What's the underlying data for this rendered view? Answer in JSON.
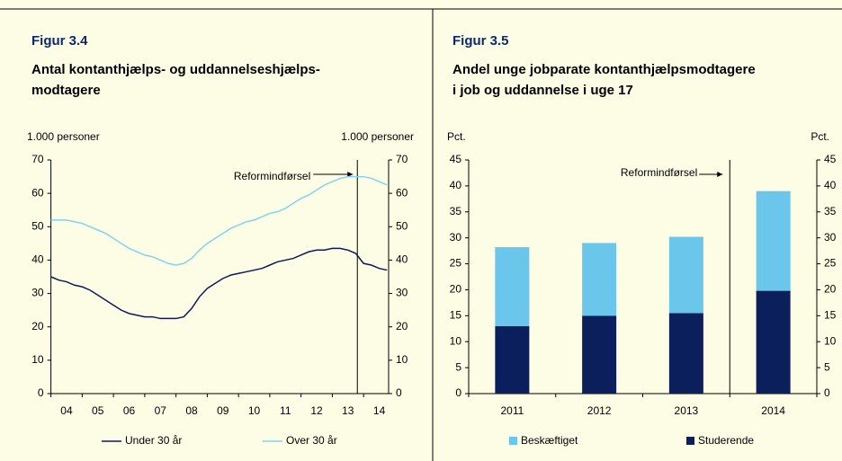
{
  "chart_data": [
    {
      "type": "line",
      "title": "Figur 3.4",
      "subtitle": [
        "Antal kontanthjælps- og uddannelseshjælps-",
        "modtagere"
      ],
      "ylabel": "1.000 personer",
      "y2label": "1.000 personer",
      "x": [
        4,
        4.25,
        4.5,
        4.75,
        5,
        5.25,
        5.5,
        5.75,
        6,
        6.25,
        6.5,
        6.75,
        7,
        7.25,
        7.5,
        7.75,
        8,
        8.25,
        8.5,
        8.75,
        9,
        9.25,
        9.5,
        9.75,
        10,
        10.25,
        10.5,
        10.75,
        11,
        11.25,
        11.5,
        11.75,
        12,
        12.25,
        12.5,
        12.75,
        13,
        13.25,
        13.5,
        13.75,
        14,
        14.25,
        14.5,
        14.75
      ],
      "series": [
        {
          "name": "Under 30 år",
          "color": "#0d1a5a",
          "values": [
            35,
            34,
            33.5,
            32.5,
            32,
            31,
            29.5,
            28,
            26.5,
            25,
            24,
            23.5,
            23,
            23,
            22.5,
            22.5,
            22.5,
            23,
            25.5,
            29,
            31.5,
            33,
            34.5,
            35.5,
            36,
            36.5,
            37,
            37.5,
            38.5,
            39.5,
            40,
            40.5,
            41.5,
            42.5,
            43,
            43,
            43.5,
            43.5,
            43,
            42,
            39,
            38.5,
            37.5,
            37
          ]
        },
        {
          "name": "Over 30 år",
          "color": "#7fd4f0",
          "values": [
            52,
            52,
            52,
            51.5,
            51,
            50,
            49,
            48,
            46.5,
            45,
            43.5,
            42.5,
            41.5,
            41,
            40,
            39,
            38.5,
            39,
            40.5,
            43,
            45,
            46.5,
            48,
            49.5,
            50.5,
            51.5,
            52,
            53,
            54,
            54.5,
            55.5,
            57,
            58.5,
            59.5,
            61,
            62.5,
            63.5,
            64.5,
            65,
            65,
            65,
            64.5,
            63.5,
            62.5
          ]
        }
      ],
      "xlim": [
        4,
        14.8
      ],
      "xticks": [
        {
          "value": 4.5,
          "label": "04"
        },
        {
          "value": 5.5,
          "label": "05"
        },
        {
          "value": 6.5,
          "label": "06"
        },
        {
          "value": 7.5,
          "label": "07"
        },
        {
          "value": 8.5,
          "label": "08"
        },
        {
          "value": 9.5,
          "label": "09"
        },
        {
          "value": 10.5,
          "label": "10"
        },
        {
          "value": 11.5,
          "label": "11"
        },
        {
          "value": 12.5,
          "label": "12"
        },
        {
          "value": 13.5,
          "label": "13"
        },
        {
          "value": 14.5,
          "label": "14"
        }
      ],
      "ylim": [
        0,
        70
      ],
      "yticks": [
        0,
        10,
        20,
        30,
        40,
        50,
        60,
        70
      ],
      "y2lim": [
        0,
        70
      ],
      "y2ticks": [
        0,
        10,
        20,
        30,
        40,
        50,
        60,
        70
      ],
      "annotation": {
        "text": "Reformindførsel",
        "x": 13.8
      }
    },
    {
      "type": "stacked_bar",
      "title": "Figur 3.5",
      "subtitle": [
        "Andel unge jobparate kontanthjælpsmodtagere",
        "i job og uddannelse i uge 17"
      ],
      "ylabel": "Pct.",
      "y2label": "Pct.",
      "categories": [
        "2011",
        "2012",
        "2013",
        "2014"
      ],
      "series": [
        {
          "name": "Studerende",
          "color": "#0a1f5c",
          "values": [
            13,
            15,
            15.5,
            19.8
          ]
        },
        {
          "name": "Beskæftiget",
          "color": "#6ac6ea",
          "values": [
            15.2,
            14,
            14.7,
            19.2
          ]
        }
      ],
      "ylim": [
        0,
        45
      ],
      "yticks": [
        0,
        5,
        10,
        15,
        20,
        25,
        30,
        35,
        40,
        45
      ],
      "y2lim": [
        0,
        45
      ],
      "y2ticks": [
        0,
        5,
        10,
        15,
        20,
        25,
        30,
        35,
        40,
        45
      ],
      "annotation": {
        "text": "Reformindførsel"
      }
    }
  ]
}
